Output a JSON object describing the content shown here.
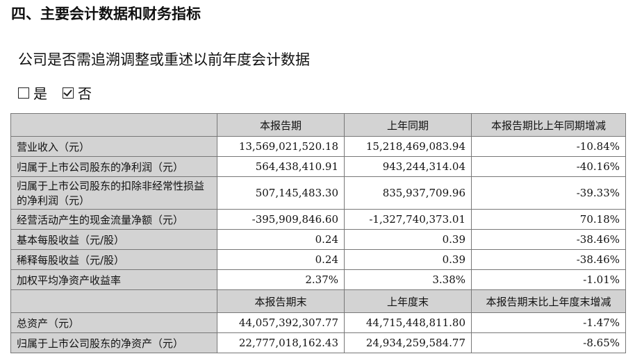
{
  "section_title": "四、主要会计数据和财务指标",
  "question": "公司是否需追溯调整或重述以前年度会计数据",
  "options": [
    {
      "label": "是",
      "checked": false
    },
    {
      "label": "否",
      "checked": true
    }
  ],
  "table": {
    "header1": [
      "",
      "本报告期",
      "上年同期",
      "本报告期比上年同期增减"
    ],
    "rows1": [
      [
        "营业收入（元）",
        "13,569,021,520.18",
        "15,218,469,083.94",
        "-10.84%"
      ],
      [
        "归属于上市公司股东的净利润（元）",
        "564,438,410.91",
        "943,244,314.04",
        "-40.16%"
      ],
      [
        "归属于上市公司股东的扣除非经常性损益的净利润（元）",
        "507,145,483.30",
        "835,937,709.96",
        "-39.33%"
      ],
      [
        "经营活动产生的现金流量净额（元）",
        "-395,909,846.60",
        "-1,327,740,373.01",
        "70.18%"
      ],
      [
        "基本每股收益（元/股）",
        "0.24",
        "0.39",
        "-38.46%"
      ],
      [
        "稀释每股收益（元/股）",
        "0.24",
        "0.39",
        "-38.46%"
      ],
      [
        "加权平均净资产收益率",
        "2.37%",
        "3.38%",
        "-1.01%"
      ]
    ],
    "header2": [
      "",
      "本报告期末",
      "上年度末",
      "本报告期末比上年度末增减"
    ],
    "rows2": [
      [
        "总资产（元）",
        "44,057,392,307.77",
        "44,715,448,811.80",
        "-1.47%"
      ],
      [
        "归属于上市公司股东的净资产（元）",
        "22,777,018,162.43",
        "24,934,259,584.77",
        "-8.65%"
      ]
    ]
  }
}
